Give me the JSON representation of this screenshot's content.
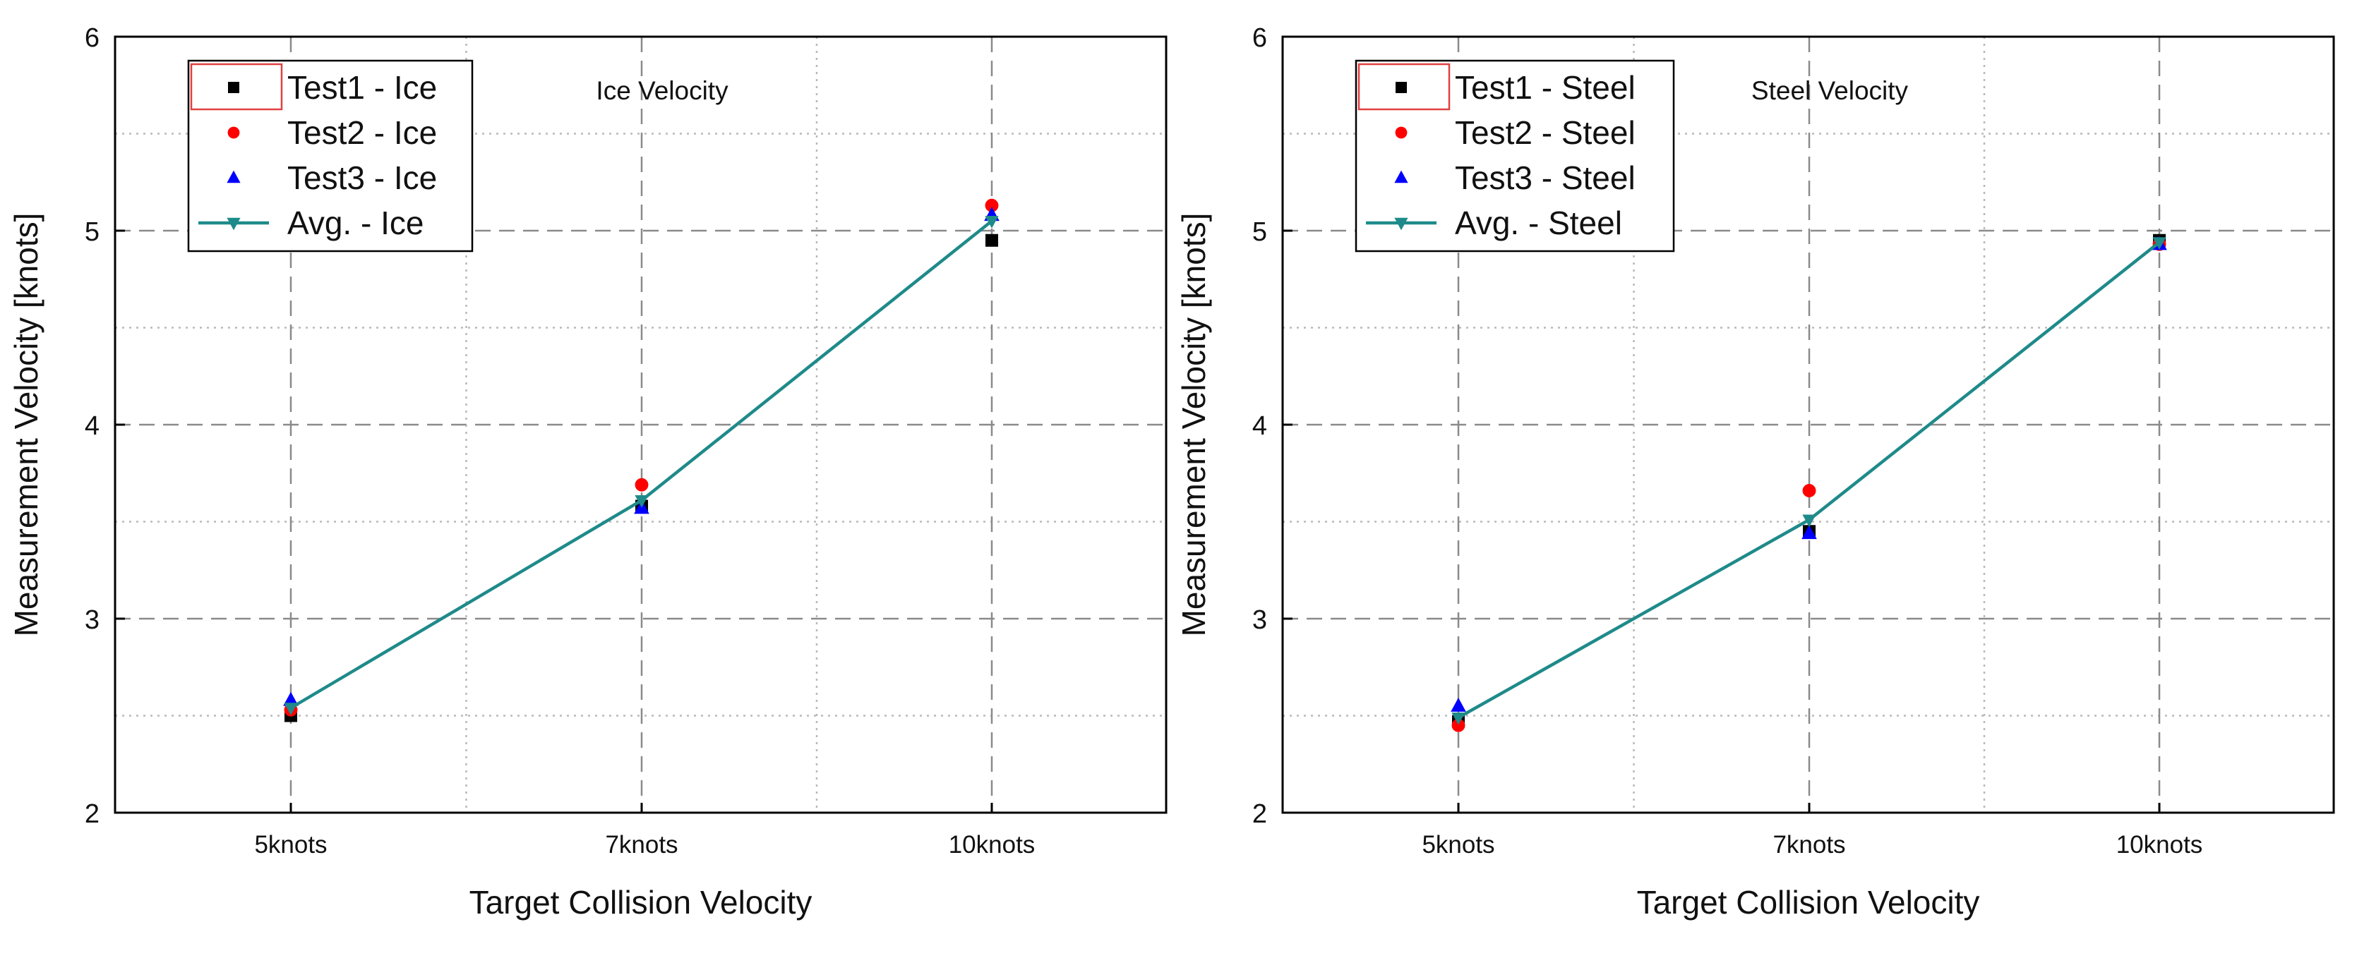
{
  "chart_data": [
    {
      "type": "line",
      "title": "Ice Velocity",
      "xlabel": "Target Collision Velocity",
      "ylabel": "Measurement Velocity [knots]",
      "categories": [
        "5knots",
        "7knots",
        "10knots"
      ],
      "ylim": [
        2,
        6
      ],
      "yticks": [
        "2",
        "3",
        "4",
        "5",
        "6"
      ],
      "grid": true,
      "legend_position": "top-left",
      "series": [
        {
          "name": "Test1 - Ice",
          "marker": "square",
          "color": "#000000",
          "line": false,
          "values": [
            2.5,
            3.58,
            4.95
          ]
        },
        {
          "name": "Test2 - Ice",
          "marker": "circle",
          "color": "#ff0000",
          "line": false,
          "values": [
            2.53,
            3.69,
            5.13
          ]
        },
        {
          "name": "Test3 - Ice",
          "marker": "triangle-up",
          "color": "#0000ff",
          "line": false,
          "values": [
            2.58,
            3.57,
            5.08
          ]
        },
        {
          "name": "Avg. - Ice",
          "marker": "triangle-down",
          "color": "#1f8a8a",
          "line": true,
          "values": [
            2.54,
            3.61,
            5.05
          ]
        }
      ]
    },
    {
      "type": "line",
      "title": "Steel Velocity",
      "xlabel": "Target Collision Velocity",
      "ylabel": "Measurement Velocity [knots]",
      "categories": [
        "5knots",
        "7knots",
        "10knots"
      ],
      "ylim": [
        2,
        6
      ],
      "yticks": [
        "2",
        "3",
        "4",
        "5",
        "6"
      ],
      "grid": true,
      "legend_position": "top-left",
      "series": [
        {
          "name": "Test1 - Steel",
          "marker": "square",
          "color": "#000000",
          "line": false,
          "values": [
            2.47,
            3.45,
            4.95
          ]
        },
        {
          "name": "Test2 - Steel",
          "marker": "circle",
          "color": "#ff0000",
          "line": false,
          "values": [
            2.45,
            3.66,
            4.93
          ]
        },
        {
          "name": "Test3 - Steel",
          "marker": "triangle-up",
          "color": "#0000ff",
          "line": false,
          "values": [
            2.55,
            3.44,
            4.93
          ]
        },
        {
          "name": "Avg. - Steel",
          "marker": "triangle-down",
          "color": "#1f8a8a",
          "line": true,
          "values": [
            2.49,
            3.51,
            4.94
          ]
        }
      ]
    }
  ]
}
